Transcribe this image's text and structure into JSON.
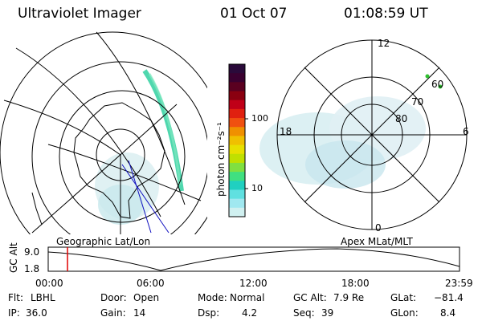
{
  "header": {
    "instrument": "Ultraviolet Imager",
    "date": "01 Oct 07",
    "time": "01:08:59 UT"
  },
  "left_panel": {
    "caption": "Geographic Lat/Lon"
  },
  "right_panel": {
    "caption": "Apex MLat/MLT",
    "mlt_labels": [
      "12",
      "18",
      "6",
      "0"
    ],
    "lat_labels": [
      "60",
      "70",
      "80"
    ]
  },
  "colorbar": {
    "unit_label": "photon cm⁻²s⁻¹",
    "ticks": [
      "100",
      "10"
    ],
    "colors": [
      "#2a0a3a",
      "#3a0030",
      "#5a0020",
      "#8a0010",
      "#c00018",
      "#e02010",
      "#f05010",
      "#f09000",
      "#f0c000",
      "#e8e000",
      "#c0e000",
      "#80e040",
      "#40e080",
      "#20d0c0",
      "#60e0e0",
      "#a0e8f0",
      "#d0f0f0"
    ]
  },
  "altitude_plot": {
    "ylabel": "GC Alt",
    "y_ticks": [
      "9.0",
      "1.8"
    ],
    "x_ticks": [
      "00:00",
      "06:00",
      "12:00",
      "18:00",
      "23:59"
    ],
    "marker_color": "#e00000"
  },
  "info": {
    "row1": [
      {
        "label": "Flt:",
        "value": "LBHL"
      },
      {
        "label": "Door:",
        "value": "Open"
      },
      {
        "label": "Mode:",
        "value": "Normal"
      },
      {
        "label": "GC Alt:",
        "value": "7.9 Re"
      },
      {
        "label": "GLat:",
        "value": "−81.4"
      }
    ],
    "row2": [
      {
        "label": "IP:",
        "value": "36.0"
      },
      {
        "label": "Gain:",
        "value": "14"
      },
      {
        "label": "Dsp:",
        "value": "4.2"
      },
      {
        "label": "Seq:",
        "value": "39"
      },
      {
        "label": "GLon:",
        "value": "8.4"
      }
    ]
  }
}
